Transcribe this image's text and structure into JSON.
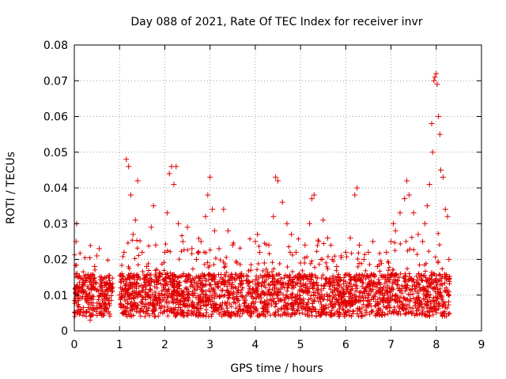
{
  "chart_data": {
    "type": "scatter",
    "title": "Day 088 of 2021, Rate Of TEC Index for receiver invr",
    "xlabel": "GPS time / hours",
    "ylabel": "ROTI / TECUs",
    "xlim": [
      0,
      9
    ],
    "ylim": [
      0,
      0.08
    ],
    "xticks": [
      0,
      1,
      2,
      3,
      4,
      5,
      6,
      7,
      8,
      9
    ],
    "xtick_labels": [
      "0",
      "1",
      "2",
      "3",
      "4",
      "5",
      "6",
      "7",
      "8",
      "9"
    ],
    "yticks": [
      0,
      0.01,
      0.02,
      0.03,
      0.04,
      0.05,
      0.06,
      0.07,
      0.08
    ],
    "ytick_labels": [
      "0",
      "0.01",
      "0.02",
      "0.03",
      "0.04",
      "0.05",
      "0.06",
      "0.07",
      "0.08"
    ],
    "grid": true,
    "marker": "+",
    "color": "#e00000",
    "series": [
      {
        "name": "ROTI",
        "points": [
          [
            0.02,
            0.005
          ],
          [
            0.03,
            0.012
          ],
          [
            0.04,
            0.025
          ],
          [
            0.05,
            0.03
          ],
          [
            0.06,
            0.016
          ],
          [
            0.08,
            0.009
          ],
          [
            0.15,
            0.006
          ],
          [
            0.2,
            0.011
          ],
          [
            0.25,
            0.014
          ],
          [
            0.3,
            0.008
          ],
          [
            0.35,
            0.003
          ],
          [
            0.4,
            0.012
          ],
          [
            0.45,
            0.018
          ],
          [
            0.5,
            0.021
          ],
          [
            0.55,
            0.023
          ],
          [
            0.6,
            0.015
          ],
          [
            0.65,
            0.009
          ],
          [
            0.7,
            0.006
          ],
          [
            0.75,
            0.011
          ],
          [
            0.8,
            0.013
          ],
          [
            1.0,
            0.01
          ],
          [
            1.05,
            0.016
          ],
          [
            1.1,
            0.022
          ],
          [
            1.15,
            0.048
          ],
          [
            1.2,
            0.046
          ],
          [
            1.25,
            0.038
          ],
          [
            1.3,
            0.027
          ],
          [
            1.35,
            0.031
          ],
          [
            1.4,
            0.042
          ],
          [
            1.5,
            0.022
          ],
          [
            1.6,
            0.018
          ],
          [
            1.7,
            0.029
          ],
          [
            1.75,
            0.035
          ],
          [
            1.8,
            0.024
          ],
          [
            1.9,
            0.016
          ],
          [
            2.0,
            0.022
          ],
          [
            2.05,
            0.033
          ],
          [
            2.1,
            0.044
          ],
          [
            2.15,
            0.046
          ],
          [
            2.2,
            0.041
          ],
          [
            2.25,
            0.046
          ],
          [
            2.3,
            0.03
          ],
          [
            2.4,
            0.025
          ],
          [
            2.5,
            0.029
          ],
          [
            2.6,
            0.023
          ],
          [
            2.7,
            0.02
          ],
          [
            2.8,
            0.025
          ],
          [
            2.9,
            0.032
          ],
          [
            2.95,
            0.038
          ],
          [
            3.0,
            0.043
          ],
          [
            3.05,
            0.034
          ],
          [
            3.1,
            0.028
          ],
          [
            3.2,
            0.023
          ],
          [
            3.3,
            0.034
          ],
          [
            3.4,
            0.028
          ],
          [
            3.5,
            0.024
          ],
          [
            3.6,
            0.019
          ],
          [
            3.7,
            0.016
          ],
          [
            3.8,
            0.014
          ],
          [
            3.9,
            0.017
          ],
          [
            4.0,
            0.025
          ],
          [
            4.05,
            0.027
          ],
          [
            4.1,
            0.022
          ],
          [
            4.2,
            0.019
          ],
          [
            4.3,
            0.024
          ],
          [
            4.4,
            0.032
          ],
          [
            4.45,
            0.043
          ],
          [
            4.5,
            0.042
          ],
          [
            4.6,
            0.036
          ],
          [
            4.7,
            0.03
          ],
          [
            4.8,
            0.027
          ],
          [
            4.9,
            0.022
          ],
          [
            5.0,
            0.019
          ],
          [
            5.1,
            0.024
          ],
          [
            5.2,
            0.03
          ],
          [
            5.25,
            0.037
          ],
          [
            5.3,
            0.038
          ],
          [
            5.4,
            0.025
          ],
          [
            5.5,
            0.031
          ],
          [
            5.6,
            0.026
          ],
          [
            5.7,
            0.02
          ],
          [
            5.8,
            0.018
          ],
          [
            5.9,
            0.021
          ],
          [
            6.0,
            0.022
          ],
          [
            6.1,
            0.026
          ],
          [
            6.2,
            0.038
          ],
          [
            6.25,
            0.04
          ],
          [
            6.3,
            0.024
          ],
          [
            6.4,
            0.02
          ],
          [
            6.5,
            0.022
          ],
          [
            6.6,
            0.025
          ],
          [
            6.7,
            0.018
          ],
          [
            6.8,
            0.015
          ],
          [
            6.9,
            0.022
          ],
          [
            7.0,
            0.025
          ],
          [
            7.05,
            0.03
          ],
          [
            7.1,
            0.028
          ],
          [
            7.2,
            0.033
          ],
          [
            7.3,
            0.037
          ],
          [
            7.35,
            0.042
          ],
          [
            7.4,
            0.038
          ],
          [
            7.5,
            0.033
          ],
          [
            7.6,
            0.027
          ],
          [
            7.7,
            0.025
          ],
          [
            7.75,
            0.03
          ],
          [
            7.8,
            0.035
          ],
          [
            7.85,
            0.041
          ],
          [
            7.9,
            0.058
          ],
          [
            7.92,
            0.05
          ],
          [
            7.95,
            0.07
          ],
          [
            7.97,
            0.071
          ],
          [
            8.0,
            0.072
          ],
          [
            8.02,
            0.069
          ],
          [
            8.05,
            0.06
          ],
          [
            8.08,
            0.055
          ],
          [
            8.1,
            0.045
          ],
          [
            8.15,
            0.043
          ],
          [
            8.2,
            0.034
          ],
          [
            8.25,
            0.032
          ],
          [
            8.28,
            0.02
          ]
        ]
      }
    ]
  }
}
